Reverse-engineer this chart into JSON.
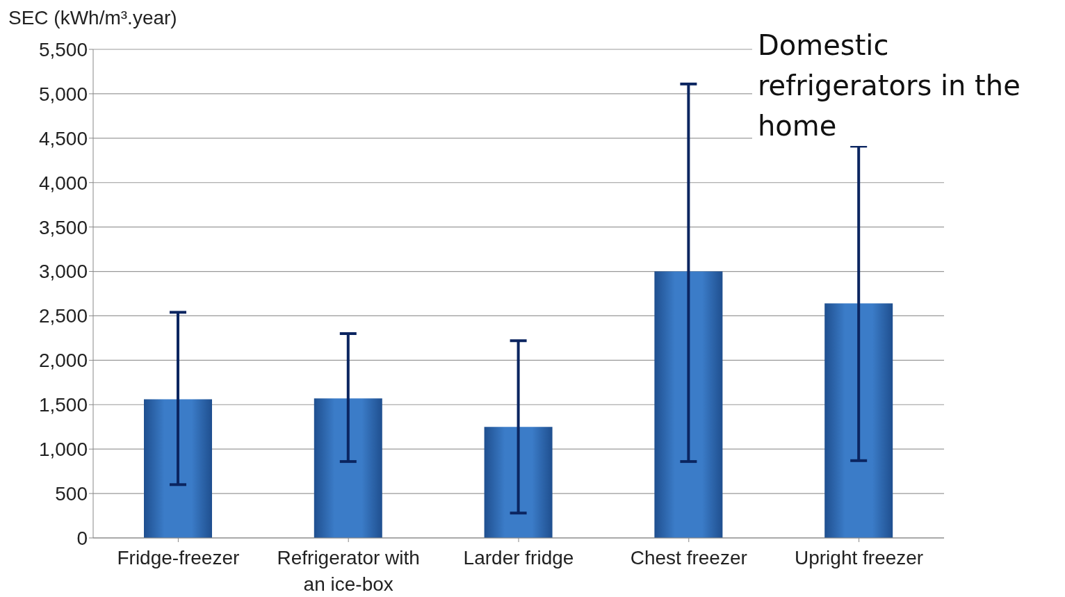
{
  "chart_data": {
    "type": "bar",
    "title": "Domestic refrigerators in the home",
    "ylabel": "SEC (kWh/m³.year)",
    "categories": [
      "Fridge-freezer",
      "Refrigerator with an ice-box",
      "Larder fridge",
      "Chest freezer",
      "Upright freezer"
    ],
    "values": [
      1560,
      1570,
      1250,
      3000,
      2640
    ],
    "errors": [
      [
        600,
        2540
      ],
      [
        860,
        2300
      ],
      [
        280,
        2220
      ],
      [
        860,
        5110
      ],
      [
        870,
        4410
      ]
    ],
    "color": "#3b7cc8",
    "ylim": [
      0,
      5500
    ],
    "yticks": [
      {
        "value": 0,
        "label": "0"
      },
      {
        "value": 500,
        "label": "500"
      },
      {
        "value": 1000,
        "label": "1,000"
      },
      {
        "value": 1500,
        "label": "1,500"
      },
      {
        "value": 2000,
        "label": "2,000"
      },
      {
        "value": 2500,
        "label": "2,500"
      },
      {
        "value": 3000,
        "label": "3,000"
      },
      {
        "value": 3500,
        "label": "3,500"
      },
      {
        "value": 4000,
        "label": "4,000"
      },
      {
        "value": 4500,
        "label": "4,500"
      },
      {
        "value": 5000,
        "label": "5,000"
      },
      {
        "value": 5500,
        "label": "5,500"
      }
    ],
    "grid": "y",
    "legend": false
  }
}
